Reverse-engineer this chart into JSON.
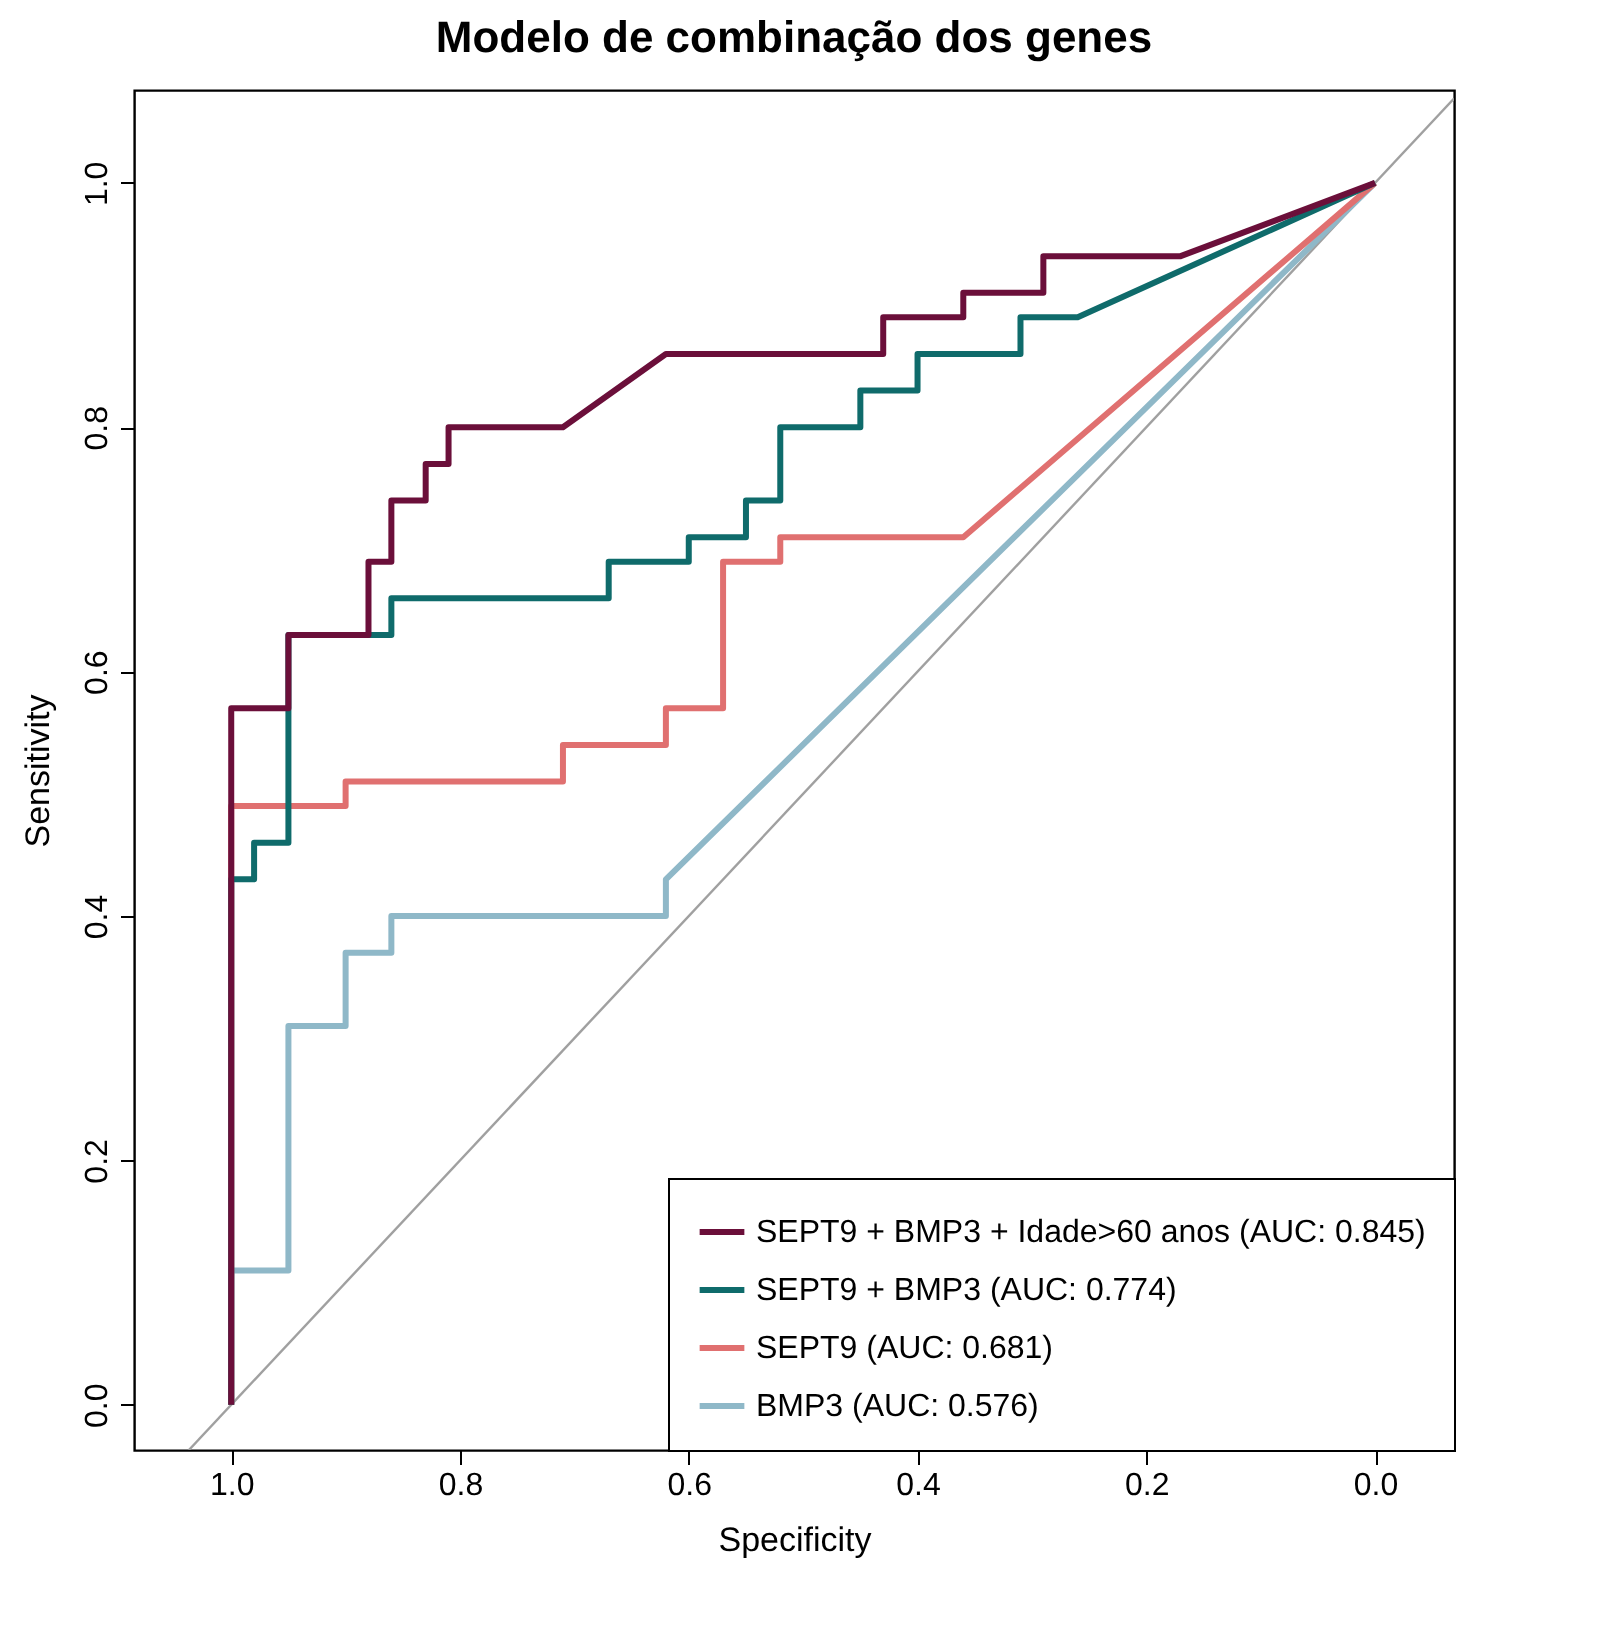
{
  "chart_data": {
    "type": "line",
    "title": "Modelo de combinação dos genes",
    "xlabel": "Specificity",
    "ylabel": "Sensitivity",
    "xlim": [
      1.085,
      -0.069
    ],
    "ylim": [
      -0.037,
      1.076
    ],
    "xticks": [
      {
        "value": 1,
        "label": "1.0"
      },
      {
        "value": 0.8,
        "label": "0.8"
      },
      {
        "value": 0.6,
        "label": "0.6"
      },
      {
        "value": 0.4,
        "label": "0.4"
      },
      {
        "value": 0.2,
        "label": "0.2"
      },
      {
        "value": 0,
        "label": "0.0"
      }
    ],
    "yticks": [
      {
        "value": 0,
        "label": "0.0"
      },
      {
        "value": 0.2,
        "label": "0.2"
      },
      {
        "value": 0.4,
        "label": "0.4"
      },
      {
        "value": 0.6,
        "label": "0.6"
      },
      {
        "value": 0.8,
        "label": "0.8"
      },
      {
        "value": 1,
        "label": "1.0"
      }
    ],
    "legend": "bottom right",
    "series": [
      {
        "name": "SEPT9 + BMP3 + Idade>60 anos (AUC: 0.845)",
        "color": "#6b0f3a",
        "x": [
          1,
          1,
          0.95,
          0.95,
          0.88,
          0.88,
          0.86,
          0.86,
          0.83,
          0.83,
          0.81,
          0.81,
          0.71,
          0.62,
          0.43,
          0.43,
          0.36,
          0.36,
          0.29,
          0.29,
          0.17,
          0
        ],
        "values": [
          0,
          0.57,
          0.57,
          0.63,
          0.63,
          0.69,
          0.69,
          0.74,
          0.74,
          0.77,
          0.77,
          0.8,
          0.8,
          0.86,
          0.86,
          0.89,
          0.89,
          0.91,
          0.91,
          0.94,
          0.94,
          1
        ]
      },
      {
        "name": "SEPT9 + BMP3 (AUC: 0.774)",
        "color": "#0f6b6b",
        "x": [
          1,
          1,
          0.98,
          0.98,
          0.95,
          0.95,
          0.86,
          0.86,
          0.67,
          0.67,
          0.6,
          0.6,
          0.55,
          0.55,
          0.52,
          0.52,
          0.45,
          0.45,
          0.4,
          0.4,
          0.31,
          0.31,
          0.26,
          0
        ],
        "values": [
          0,
          0.43,
          0.43,
          0.46,
          0.46,
          0.63,
          0.63,
          0.66,
          0.66,
          0.69,
          0.69,
          0.71,
          0.71,
          0.74,
          0.74,
          0.8,
          0.8,
          0.83,
          0.83,
          0.86,
          0.86,
          0.89,
          0.89,
          1
        ]
      },
      {
        "name": "SEPT9 (AUC: 0.681)",
        "color": "#e07070",
        "x": [
          1,
          1,
          0.9,
          0.9,
          0.71,
          0.71,
          0.62,
          0.62,
          0.57,
          0.57,
          0.52,
          0.52,
          0.36,
          0
        ],
        "values": [
          0,
          0.49,
          0.49,
          0.51,
          0.51,
          0.54,
          0.54,
          0.57,
          0.57,
          0.69,
          0.69,
          0.71,
          0.71,
          1
        ]
      },
      {
        "name": "BMP3 (AUC: 0.576)",
        "color": "#8fb8c8",
        "x": [
          1,
          1,
          0.95,
          0.95,
          0.9,
          0.9,
          0.86,
          0.86,
          0.62,
          0.62,
          0
        ],
        "values": [
          0,
          0.11,
          0.11,
          0.31,
          0.31,
          0.37,
          0.37,
          0.4,
          0.4,
          0.43,
          1
        ]
      },
      {
        "type": "line",
        "color": "#a0a0a0",
        "x": [
          1.037,
          -0.069
        ],
        "values": [
          -0.037,
          1.069
        ]
      }
    ]
  }
}
